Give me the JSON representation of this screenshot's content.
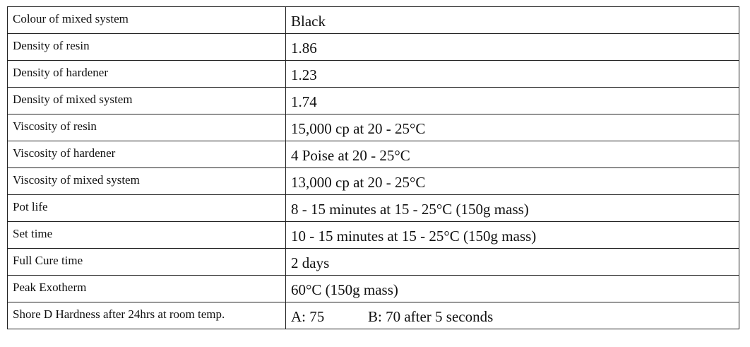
{
  "table": {
    "rows": [
      [
        "Colour of mixed system",
        "Black"
      ],
      [
        "Density of resin",
        "1.86"
      ],
      [
        "Density of hardener",
        "1.23"
      ],
      [
        "Density of mixed system",
        "1.74"
      ],
      [
        "Viscosity of resin",
        "15,000 cp at 20 - 25°C"
      ],
      [
        "Viscosity of hardener",
        "4 Poise at 20 - 25°C"
      ],
      [
        "Viscosity of mixed system",
        "13,000 cp at 20 - 25°C"
      ],
      [
        "Pot life",
        "8 - 15 minutes at 15 - 25°C (150g mass)"
      ],
      [
        "Set time",
        "10 - 15 minutes at 15 - 25°C (150g mass)"
      ],
      [
        "Full Cure time",
        "2 days"
      ],
      [
        "Peak Exotherm",
        "60°C (150g mass)"
      ],
      [
        "Shore D Hardness after 24hrs at room temp.",
        "A: 75",
        "B: 70 after 5 seconds"
      ]
    ]
  }
}
